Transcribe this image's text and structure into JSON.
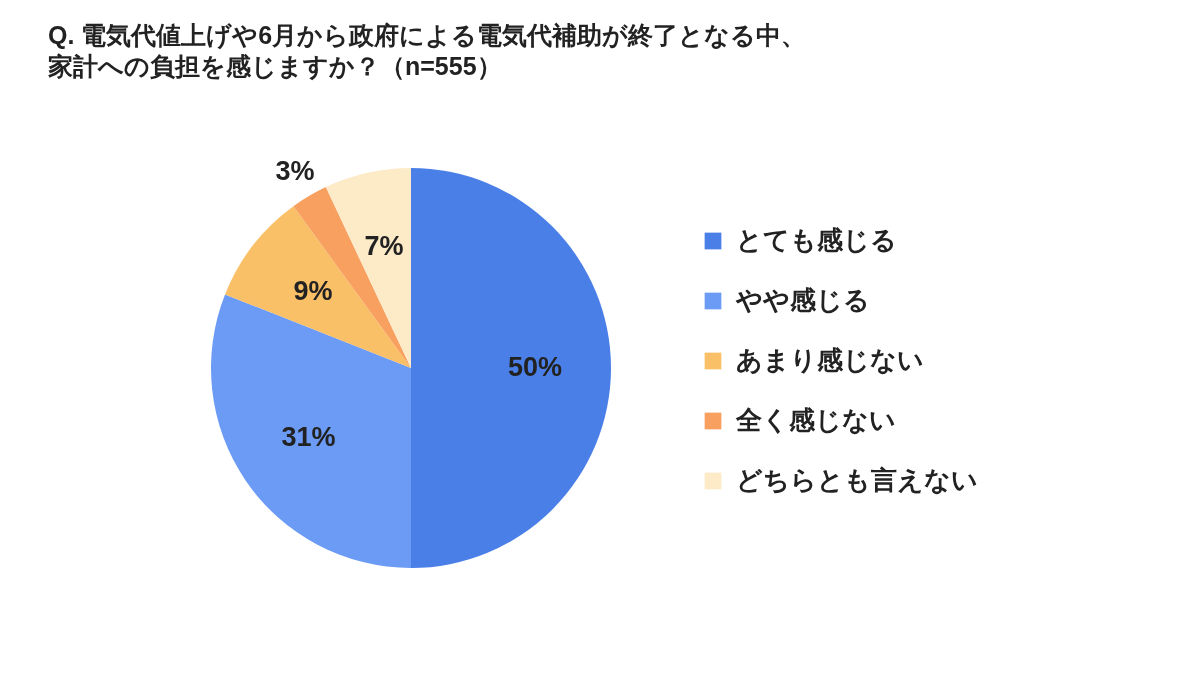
{
  "chart_data": {
    "type": "pie",
    "title": "Q. 電気代値上げや6月から政府による電気代補助が終了となる中、",
    "subtitle": "家計への負担を感じますか？（n=555）",
    "categories": [
      "とても感じる",
      "やや感じる",
      "あまり感じない",
      "全く感じない",
      "どちらとも言えない"
    ],
    "values": [
      50,
      31,
      9,
      3,
      7
    ],
    "colors": [
      "#4a7fe8",
      "#6b9bf5",
      "#f9c068",
      "#f8a060",
      "#fdebc8"
    ],
    "value_labels": [
      "50%",
      "31%",
      "9%",
      "3%",
      "7%"
    ],
    "legend": "right"
  }
}
